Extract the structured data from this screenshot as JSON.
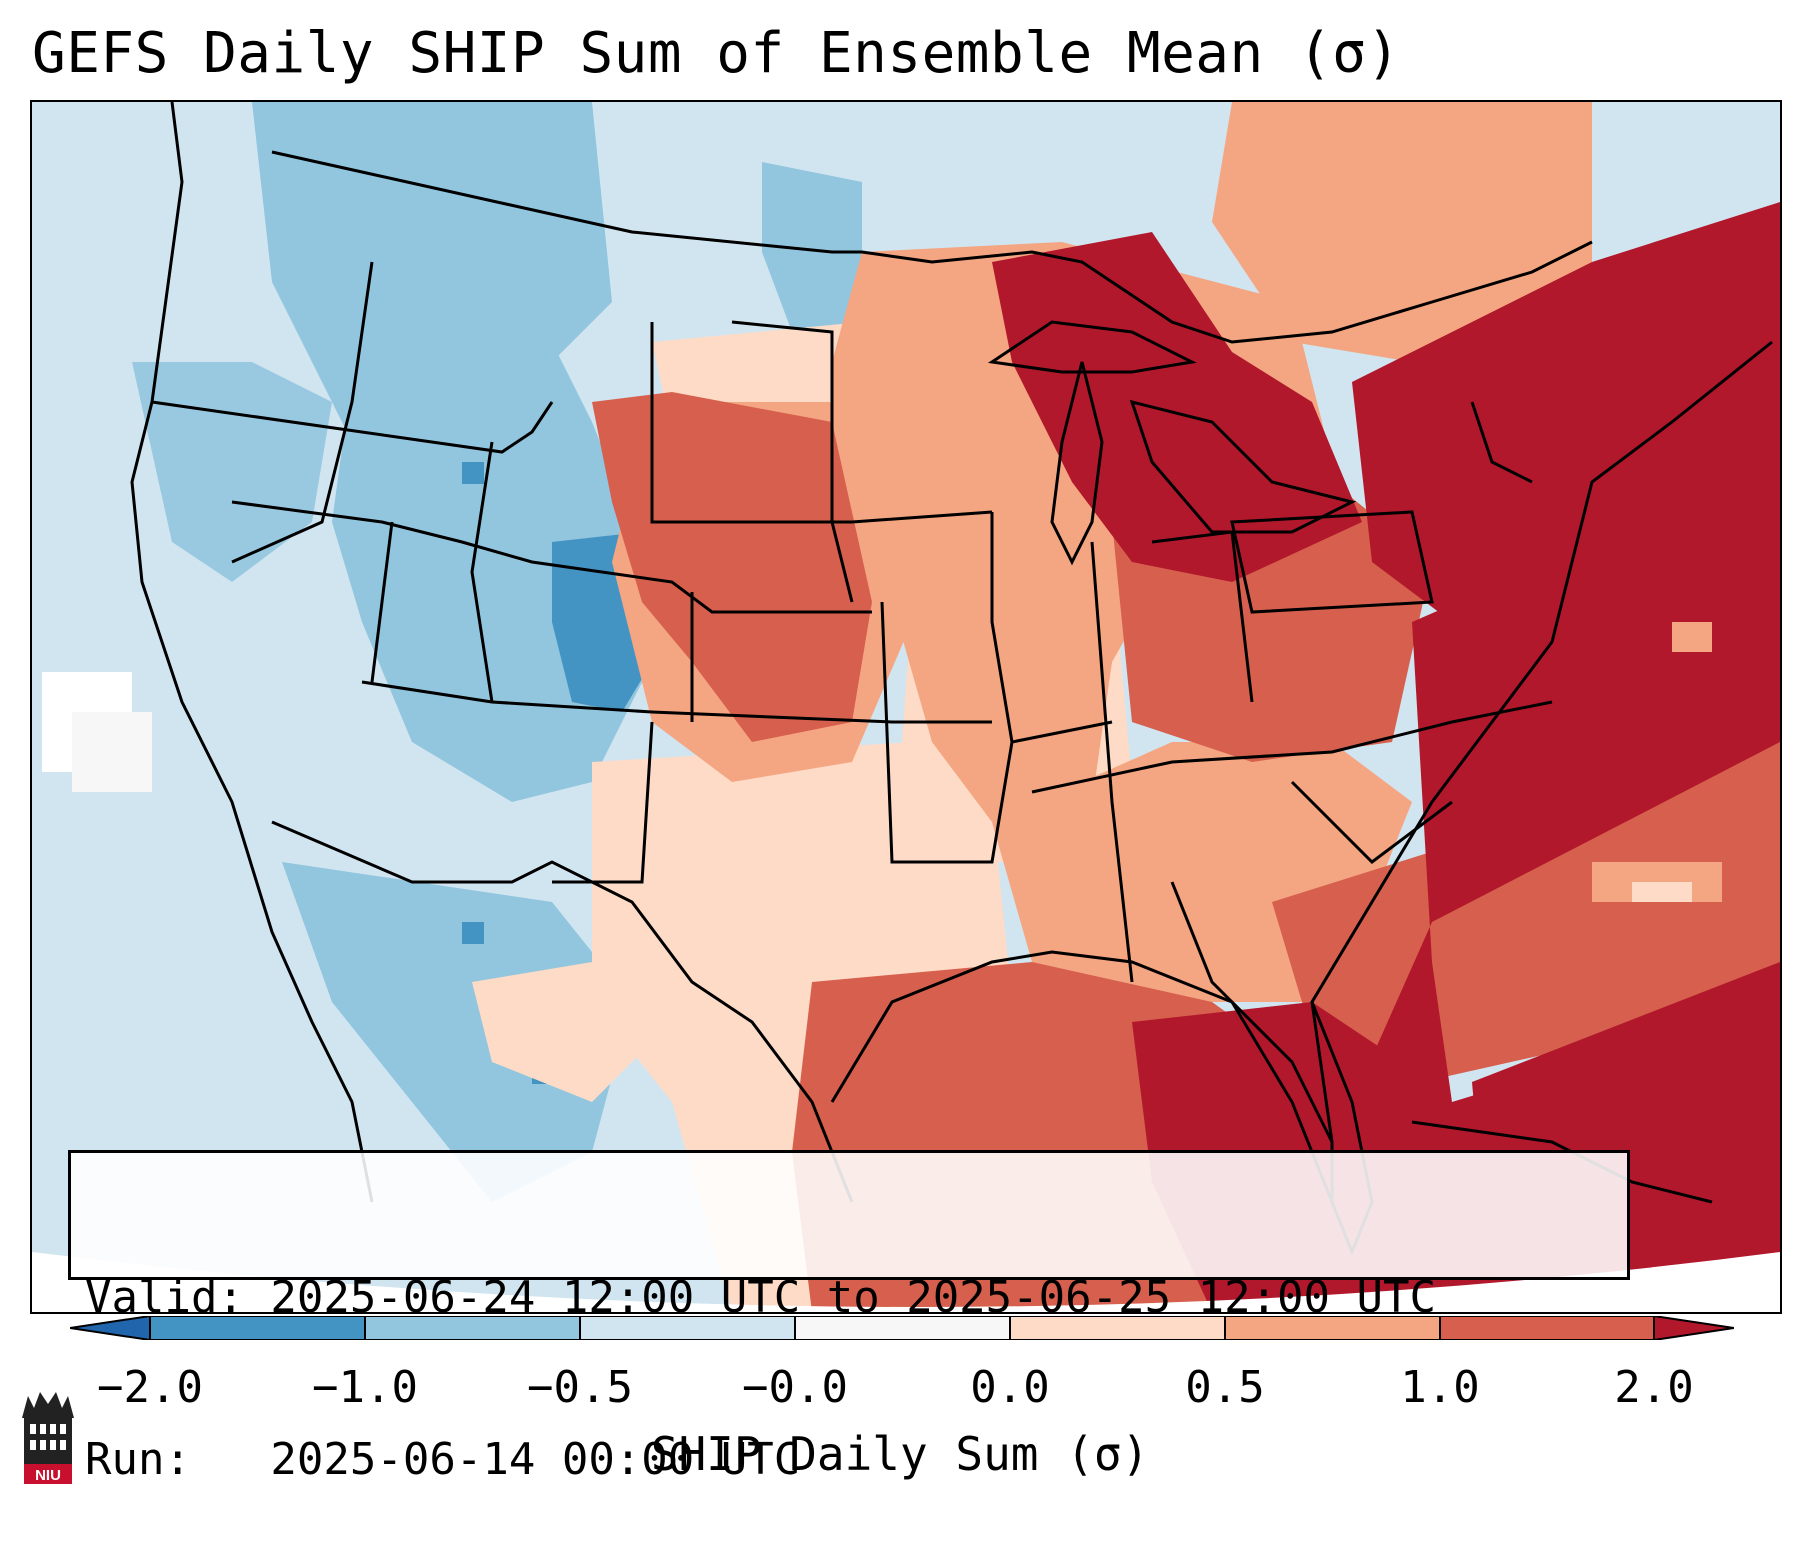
{
  "title": "GEFS Daily SHIP Sum of Ensemble Mean (σ)",
  "info": {
    "valid_line": "Valid: 2025-06-24 12:00 UTC to 2025-06-25 12:00 UTC",
    "run_line": "Run:   2025-06-14 00:00 UTC"
  },
  "colorbar": {
    "label": "SHIP Daily Sum (σ)",
    "tick_labels": [
      "−2.0",
      "−1.0",
      "−0.5",
      "−0.0",
      "0.0",
      "0.5",
      "1.0",
      "2.0"
    ],
    "colors": [
      "#4393c3",
      "#92c5de",
      "#d1e5f0",
      "#f7f7f7",
      "#fddbc7",
      "#f4a582",
      "#d6604d",
      "#b2182b"
    ]
  },
  "logo": {
    "icon": "niu-logo-icon",
    "text": "NIU"
  }
}
